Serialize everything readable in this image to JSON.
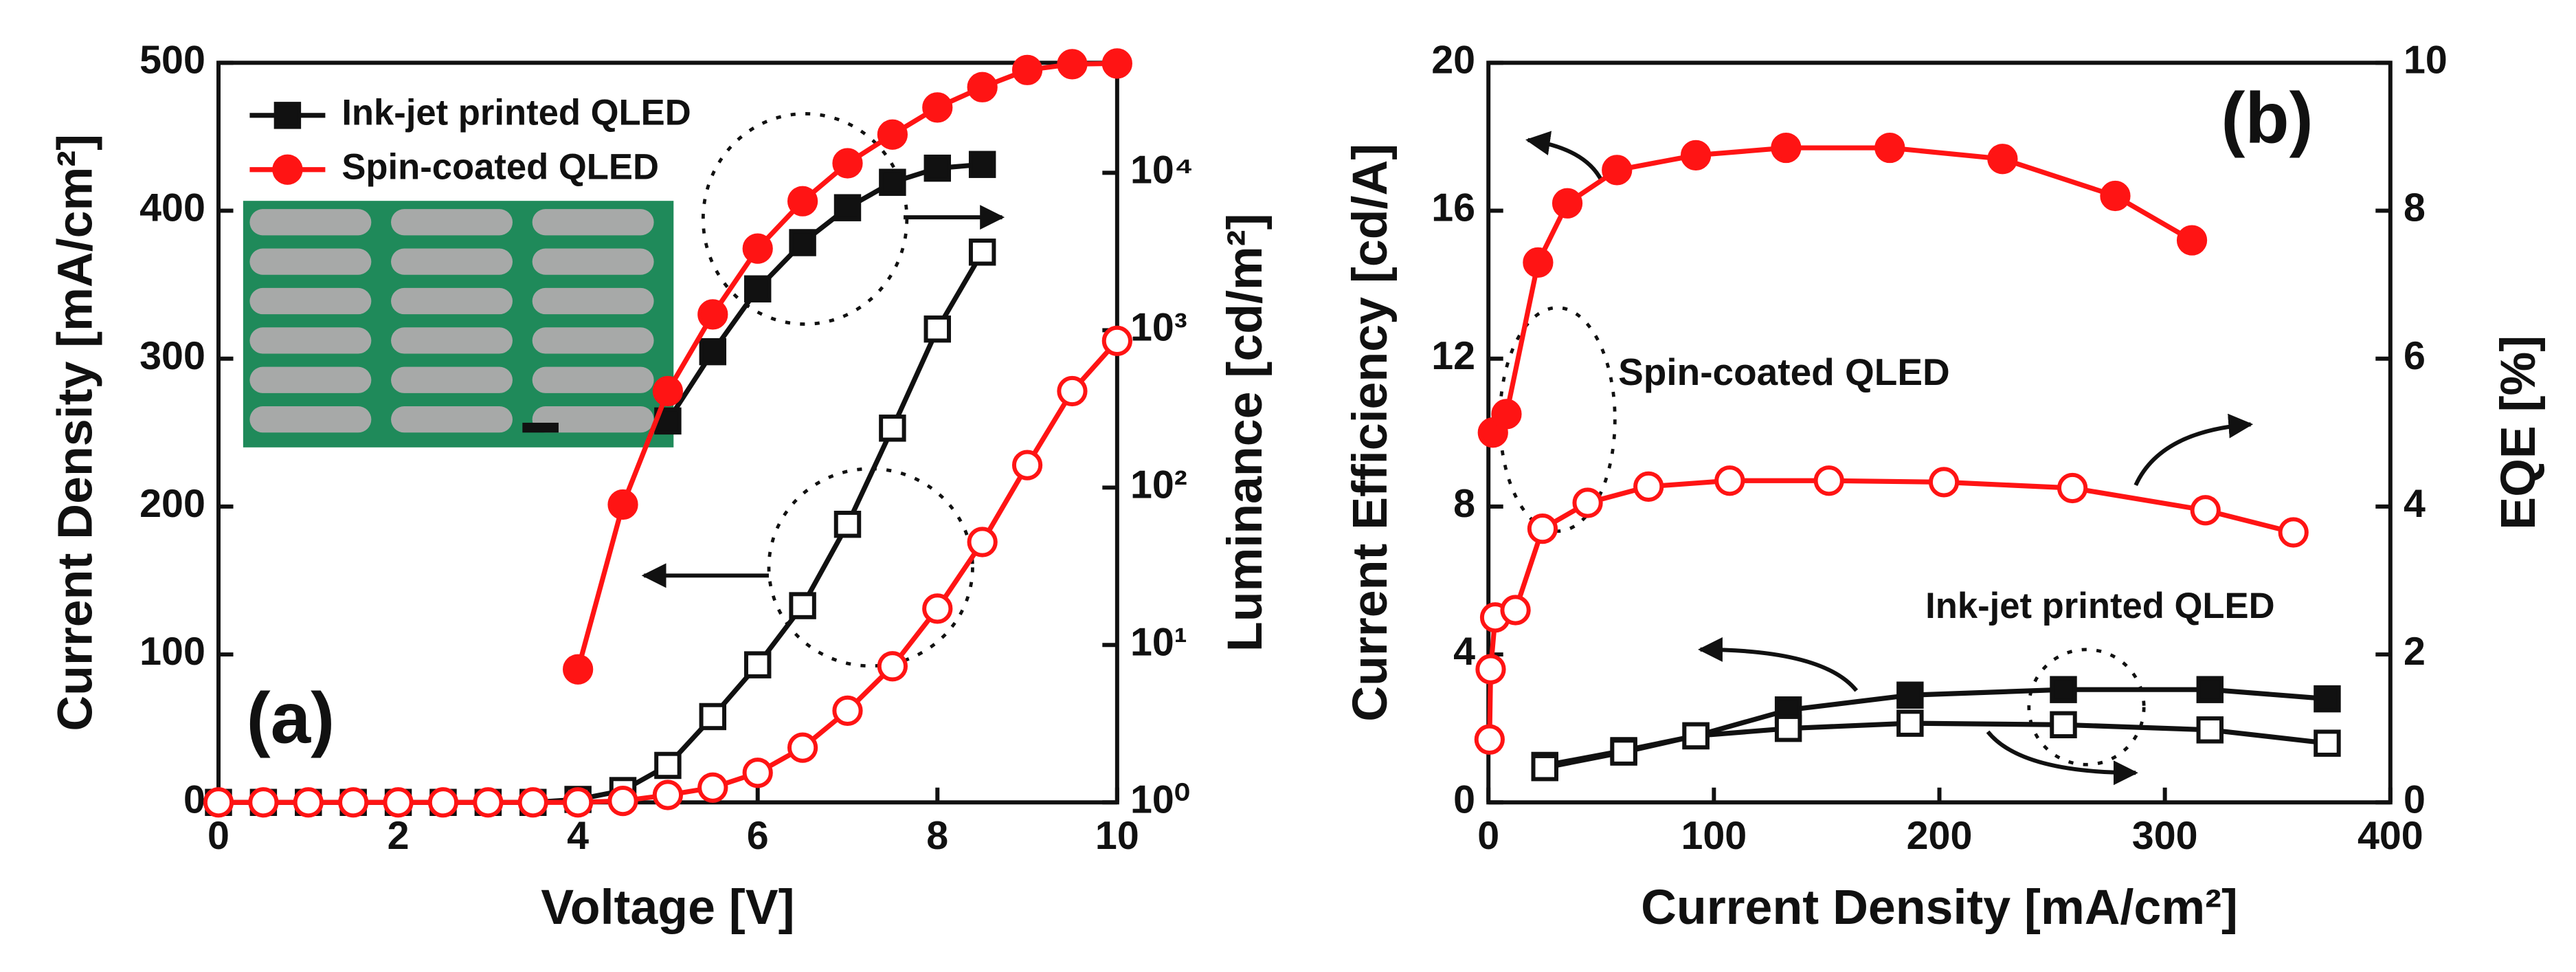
{
  "chart_data": [
    {
      "type": "line",
      "xlabel": "Voltage [V]",
      "ylabel": "Current Density [mA/cm²]",
      "y2label": "Luminance [cd/m²]",
      "xlim": [
        0,
        10
      ],
      "xticks": [
        0,
        2,
        4,
        6,
        8,
        10
      ],
      "ylim": [
        0,
        500
      ],
      "yticks": [
        0,
        100,
        200,
        300,
        400,
        500
      ],
      "y2lim": [
        1,
        50000
      ],
      "y2log": true,
      "y2ticks": [
        {
          "value": 1,
          "label": "10⁰"
        },
        {
          "value": 10,
          "label": "10¹"
        },
        {
          "value": 100,
          "label": "10²"
        },
        {
          "value": 1000,
          "label": "10³"
        },
        {
          "value": 10000,
          "label": "10⁴"
        }
      ],
      "annotations": [
        "(a)"
      ],
      "series": [
        {
          "name": "Ink-jet printed QLED",
          "color": "#111111",
          "marker": "square",
          "filled": true,
          "axis": "y2",
          "x": [
            5,
            5.5,
            6,
            6.5,
            7,
            7.5,
            8,
            8.5
          ],
          "values": [
            265,
            730,
            1830,
            3600,
            6000,
            8700,
            10700,
            11300
          ]
        },
        {
          "name": "Spin-coated QLED",
          "color": "#ff1414",
          "marker": "circle",
          "filled": true,
          "axis": "y2",
          "x": [
            4,
            4.5,
            5,
            5.5,
            6,
            6.5,
            7,
            7.5,
            8,
            8.5,
            9,
            9.5,
            10
          ],
          "values": [
            7,
            78,
            410,
            1260,
            3300,
            6600,
            11500,
            17500,
            26000,
            35000,
            45000,
            49000,
            49500
          ]
        },
        {
          "color": "#111111",
          "marker": "square",
          "filled": false,
          "x": [
            0,
            0.5,
            1,
            1.5,
            2,
            2.5,
            3,
            3.5,
            4,
            4.5,
            5,
            5.5,
            6,
            6.5,
            7,
            7.5,
            8,
            8.5
          ],
          "values": [
            0,
            0,
            0,
            0,
            0,
            0,
            0,
            0,
            2,
            8,
            25,
            58,
            93,
            133,
            188,
            253,
            320,
            372
          ]
        },
        {
          "color": "#ff1414",
          "marker": "circle",
          "filled": false,
          "x": [
            0,
            0.5,
            1,
            1.5,
            2,
            2.5,
            3,
            3.5,
            4,
            4.5,
            5,
            5.5,
            6,
            6.5,
            7,
            7.5,
            8,
            8.5,
            9,
            9.5,
            10
          ],
          "values": [
            0,
            0,
            0,
            0,
            0,
            0,
            0,
            0,
            0,
            1,
            5,
            10,
            20,
            37,
            62,
            92,
            131,
            176,
            228,
            278,
            312
          ]
        }
      ]
    },
    {
      "type": "line",
      "xlabel": "Current Density [mA/cm²]",
      "ylabel": "Current Efficiency [cd/A]",
      "y2label": "EQE [%]",
      "xlim": [
        0,
        400
      ],
      "xticks": [
        0,
        100,
        200,
        300,
        400
      ],
      "ylim": [
        0,
        20
      ],
      "yticks": [
        0,
        4,
        8,
        12,
        16,
        20
      ],
      "y2lim": [
        0,
        10
      ],
      "y2ticks": [
        0,
        2,
        4,
        6,
        8,
        10
      ],
      "annotations": [
        "(b)",
        "Spin-coated QLED",
        "Ink-jet printed QLED"
      ],
      "series": [
        {
          "color": "#ff1414",
          "marker": "circle",
          "filled": true,
          "x": [
            2,
            8,
            22,
            35,
            57,
            92,
            132,
            178,
            228,
            278,
            312
          ],
          "values": [
            10.0,
            10.5,
            14.6,
            16.2,
            17.1,
            17.5,
            17.7,
            17.7,
            17.4,
            16.4,
            15.2
          ]
        },
        {
          "color": "#ff1414",
          "marker": "circle",
          "filled": false,
          "axis": "y2",
          "x": [
            0.5,
            1,
            3,
            12,
            24,
            44,
            71,
            107,
            151,
            202,
            259,
            318,
            357
          ],
          "values": [
            0.85,
            1.8,
            2.5,
            2.6,
            3.7,
            4.05,
            4.27,
            4.35,
            4.35,
            4.33,
            4.25,
            3.95,
            3.65
          ]
        },
        {
          "color": "#111111",
          "marker": "square",
          "filled": true,
          "x": [
            25,
            60,
            92,
            133,
            187,
            255,
            320,
            372
          ],
          "values": [
            1.0,
            1.4,
            1.8,
            2.5,
            2.9,
            3.05,
            3.05,
            2.8
          ]
        },
        {
          "color": "#111111",
          "marker": "square",
          "filled": false,
          "axis": "y2",
          "x": [
            25,
            60,
            92,
            133,
            187,
            255,
            320,
            372
          ],
          "values": [
            0.47,
            0.68,
            0.9,
            1.0,
            1.07,
            1.05,
            0.98,
            0.8
          ]
        }
      ]
    }
  ]
}
